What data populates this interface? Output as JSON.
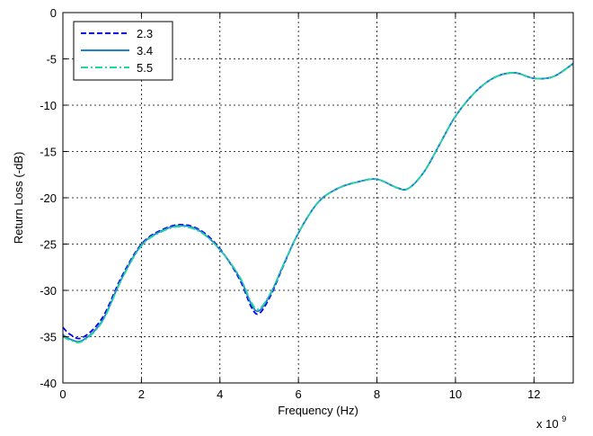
{
  "chart_data": {
    "type": "line",
    "xlabel": "Frequency (Hz)",
    "ylabel": "Return Loss (-dB)",
    "x_multiplier_label": {
      "base": "x 10",
      "exponent": "9"
    },
    "xlim": [
      0,
      13
    ],
    "ylim": [
      -40,
      0
    ],
    "x_ticks": [
      0,
      2,
      4,
      6,
      8,
      10,
      12
    ],
    "y_ticks": [
      0,
      -5,
      -10,
      -15,
      -20,
      -25,
      -30,
      -35,
      -40
    ],
    "grid": true,
    "legend_position": "top-left",
    "series": [
      {
        "name": "2.3",
        "color": "#0000ee",
        "dash": "dashed",
        "x": [
          0,
          0.2,
          0.5,
          1.0,
          1.5,
          2.0,
          2.5,
          3.0,
          3.5,
          4.0,
          4.5,
          4.8,
          5.0,
          5.3,
          5.6,
          6.0,
          6.5,
          7.0,
          7.5,
          8.0,
          8.5,
          8.8,
          9.2,
          9.6,
          10.0,
          10.5,
          11.0,
          11.5,
          12.0,
          12.5,
          13.0
        ],
        "y": [
          -34.0,
          -34.8,
          -35.1,
          -33.0,
          -28.5,
          -25.0,
          -23.5,
          -22.9,
          -23.5,
          -25.5,
          -28.8,
          -31.8,
          -32.5,
          -30.5,
          -27.5,
          -23.8,
          -20.5,
          -19.0,
          -18.3,
          -18.0,
          -18.9,
          -19.0,
          -17.2,
          -14.2,
          -11.2,
          -8.6,
          -7.0,
          -6.5,
          -7.1,
          -6.9,
          -5.5
        ]
      },
      {
        "name": "3.4",
        "color": "#1f7fd0",
        "dash": "solid",
        "x": [
          0,
          0.2,
          0.5,
          1.0,
          1.5,
          2.0,
          2.5,
          3.0,
          3.5,
          4.0,
          4.5,
          4.8,
          5.0,
          5.3,
          5.6,
          6.0,
          6.5,
          7.0,
          7.5,
          8.0,
          8.5,
          8.8,
          9.2,
          9.6,
          10.0,
          10.5,
          11.0,
          11.5,
          12.0,
          12.5,
          13.0
        ],
        "y": [
          -34.8,
          -35.3,
          -35.4,
          -33.3,
          -28.7,
          -25.1,
          -23.6,
          -23.0,
          -23.6,
          -25.6,
          -28.6,
          -31.5,
          -32.2,
          -30.3,
          -27.4,
          -23.8,
          -20.5,
          -19.0,
          -18.3,
          -18.0,
          -18.9,
          -19.0,
          -17.2,
          -14.2,
          -11.2,
          -8.6,
          -7.0,
          -6.5,
          -7.1,
          -6.9,
          -5.5
        ]
      },
      {
        "name": "5.5",
        "color": "#22d7a0",
        "dash": "dashdot",
        "x": [
          0,
          0.2,
          0.5,
          1.0,
          1.5,
          2.0,
          2.5,
          3.0,
          3.5,
          4.0,
          4.5,
          4.8,
          5.0,
          5.3,
          5.6,
          6.0,
          6.5,
          7.0,
          7.5,
          8.0,
          8.5,
          8.8,
          9.2,
          9.6,
          10.0,
          10.5,
          11.0,
          11.5,
          12.0,
          12.5,
          13.0
        ],
        "y": [
          -35.0,
          -35.4,
          -35.5,
          -33.4,
          -28.8,
          -25.2,
          -23.7,
          -23.1,
          -23.7,
          -25.6,
          -28.5,
          -31.3,
          -32.0,
          -30.2,
          -27.4,
          -23.8,
          -20.5,
          -19.0,
          -18.3,
          -18.0,
          -18.9,
          -19.0,
          -17.2,
          -14.2,
          -11.2,
          -8.6,
          -7.0,
          -6.5,
          -7.1,
          -6.9,
          -5.5
        ]
      }
    ]
  }
}
